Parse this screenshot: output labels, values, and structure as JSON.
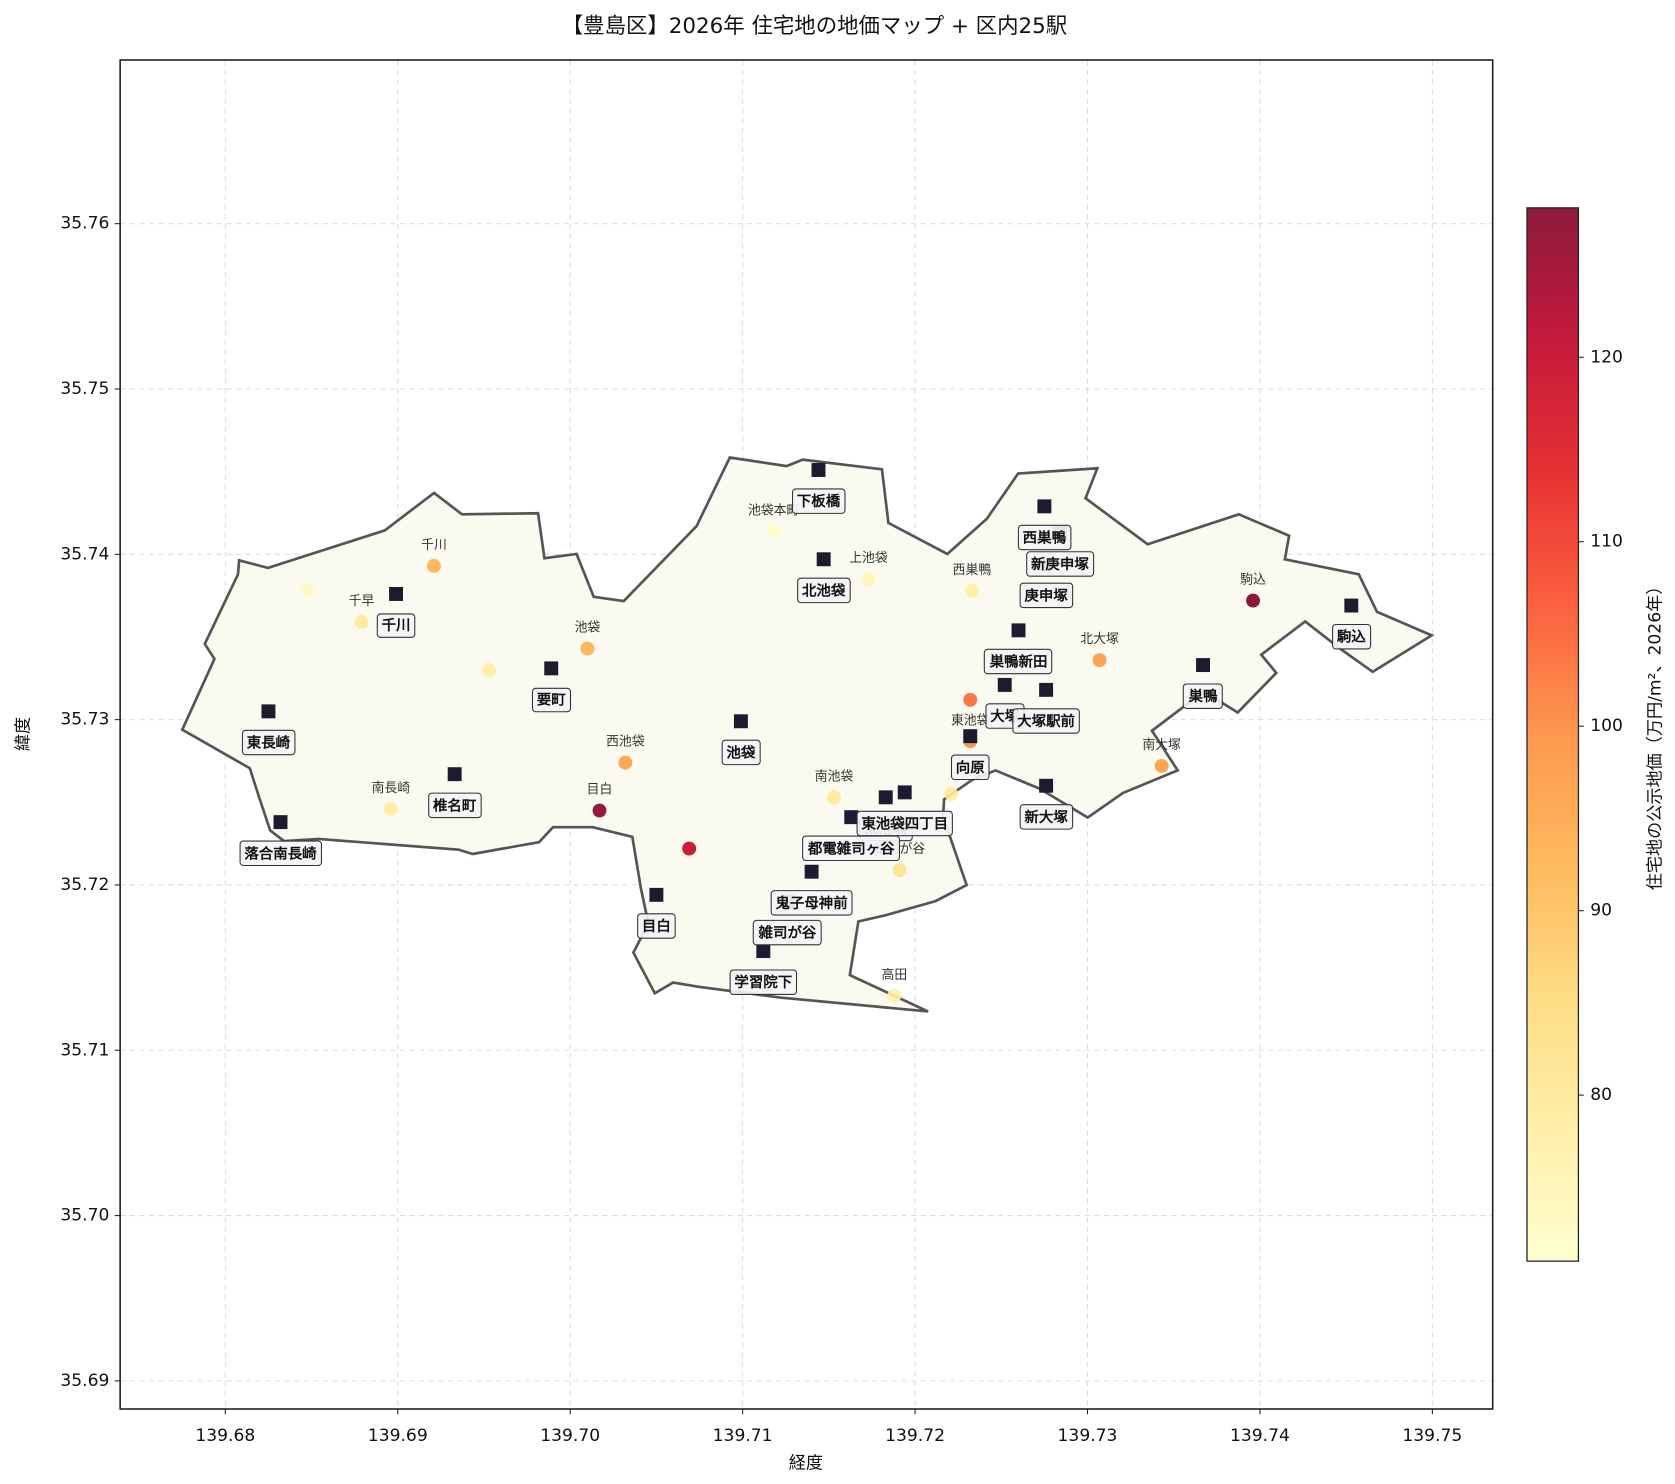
{
  "chart_data": {
    "type": "map",
    "title": "【豊島区】2026年 住宅地の地価マップ + 区内25駅",
    "xlabel": "経度",
    "ylabel": "緯度",
    "xlim": [
      139.6739,
      139.7535
    ],
    "ylim": [
      35.6883,
      35.7699
    ],
    "xticks": [
      139.68,
      139.69,
      {
        "value": 139.7,
        "label": "139.70"
      },
      139.71,
      139.72,
      139.73,
      139.74,
      139.75
    ],
    "yticks": [
      35.69,
      {
        "value": 35.7,
        "label": "35.70"
      },
      35.71,
      35.72,
      35.73,
      35.74,
      35.75,
      35.76
    ],
    "grid": true,
    "land_prices": {
      "labels": [
        null,
        "千川",
        "千早",
        null,
        "池袋",
        "池袋本町",
        "上池袋",
        "西巣鴨",
        "駒込",
        "北大塚",
        null,
        "東池袋",
        "南大塚",
        "西池袋",
        "南長崎",
        "目白",
        null,
        "南池袋",
        null,
        "雑司が谷",
        "高田"
      ],
      "x": [
        139.6848,
        139.6921,
        139.6879,
        139.6953,
        139.701,
        139.7118,
        139.7173,
        139.7233,
        139.7396,
        139.7307,
        139.7232,
        139.7232,
        139.7343,
        139.7032,
        139.6896,
        139.7017,
        139.7069,
        139.7153,
        139.7221,
        139.7191,
        139.7188
      ],
      "y": [
        35.7378,
        35.7393,
        35.7359,
        35.733,
        35.7343,
        35.7414,
        35.7385,
        35.7378,
        35.7372,
        35.7336,
        35.7312,
        35.7287,
        35.7272,
        35.7274,
        35.7246,
        35.7245,
        35.7222,
        35.7253,
        35.7255,
        35.7209,
        35.7133
      ],
      "values": [
        73,
        93,
        80,
        78,
        93,
        72,
        75,
        78,
        128,
        97,
        104,
        100,
        97,
        96,
        79,
        127,
        120,
        80,
        79,
        82,
        77
      ]
    },
    "stations": {
      "color": "#1c1c30",
      "labels": [
        "東長崎",
        "落合南長崎",
        "千川",
        "椎名町",
        "要町",
        "池袋",
        "下板橋",
        "北池袋",
        "西巣鴨",
        "新庚申塚",
        "庚申塚",
        "巣鴨新田",
        "大塚",
        "大塚駅前",
        "向原",
        "新大塚",
        "巣鴨",
        "駒込",
        "東池袋",
        "東池袋四丁目",
        "都電雑司ヶ谷",
        "鬼子母神前",
        "目白",
        "雑司が谷",
        "学習院下"
      ],
      "x": [
        139.6825,
        139.6832,
        139.6899,
        139.6933,
        139.6989,
        139.7099,
        139.7144,
        139.7147,
        139.7275,
        139.7284,
        139.7276,
        139.726,
        139.7252,
        139.7276,
        139.7232,
        139.7276,
        139.7367,
        139.7453,
        139.7183,
        139.7194,
        139.7163,
        139.714,
        139.705,
        139.7126,
        139.7112
      ],
      "y": [
        35.7305,
        35.7238,
        35.7376,
        35.7267,
        35.7331,
        35.7299,
        35.7451,
        35.7397,
        35.7429,
        35.7413,
        35.7394,
        35.7354,
        35.7321,
        35.7318,
        35.729,
        35.726,
        35.7333,
        35.7369,
        35.7253,
        35.7256,
        35.7241,
        35.7208,
        35.7194,
        35.719,
        35.716
      ]
    },
    "colorbar": {
      "label": "住宅地の公示地価（万円/m²、2026年）",
      "lim": [
        71,
        128.1
      ],
      "ticks": [
        80,
        90,
        100,
        110,
        120
      ],
      "colors": [
        "#ffffcc",
        "#ffeda0",
        "#fed976",
        "#feb24c",
        "#fd8d3c",
        "#fc4e2a",
        "#e31a1c",
        "#bd0026",
        "#800026"
      ]
    }
  }
}
